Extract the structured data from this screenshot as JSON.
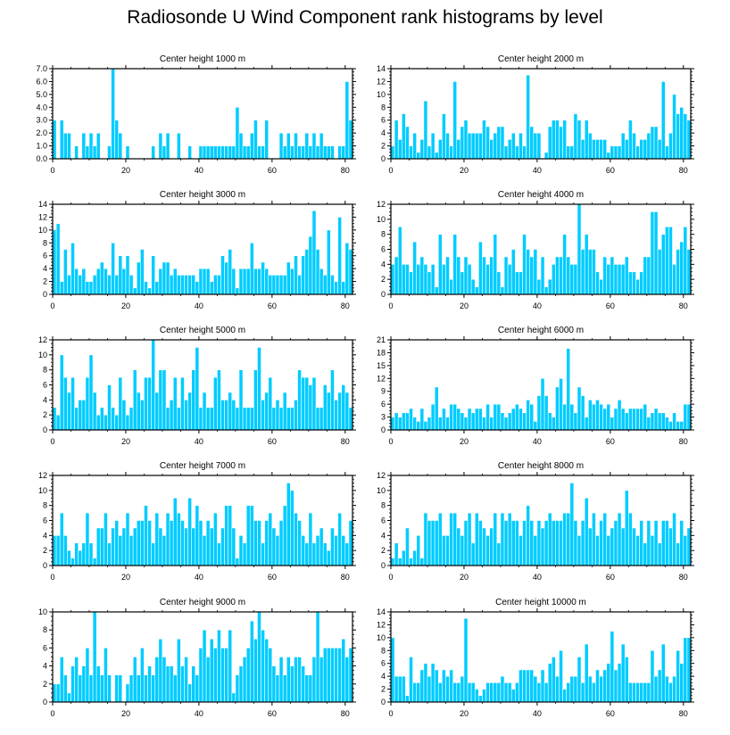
{
  "page": {
    "title": "Radiosonde U Wind Component rank histograms by level"
  },
  "style": {
    "bar_color": "#00ccff",
    "bar_edge": "#ffffff",
    "axis_color": "#000000"
  },
  "chart_data": [
    {
      "type": "bar",
      "title": "Center height 1000 m",
      "xlabel": "",
      "ylabel": "",
      "xlim": [
        0,
        82
      ],
      "ylim": [
        0,
        7
      ],
      "xticks": [
        0,
        20,
        40,
        60,
        80
      ],
      "yticks": [
        0,
        1,
        2,
        3,
        4,
        5,
        6,
        7
      ],
      "ytick_labels": [
        "0.0",
        "1.0",
        "2.0",
        "3.0",
        "4.0",
        "5.0",
        "6.0",
        "7.0"
      ],
      "values": [
        3,
        0,
        3,
        2,
        2,
        0,
        1,
        0,
        2,
        1,
        2,
        1,
        2,
        0,
        0,
        1,
        7,
        3,
        2,
        0,
        1,
        0,
        0,
        0,
        0,
        0,
        0,
        1,
        0,
        2,
        1,
        2,
        0,
        0,
        2,
        0,
        0,
        1,
        0,
        0,
        1,
        1,
        1,
        1,
        1,
        1,
        1,
        1,
        1,
        1,
        4,
        2,
        1,
        1,
        2,
        3,
        1,
        1,
        3,
        0,
        0,
        0,
        2,
        1,
        2,
        1,
        2,
        1,
        1,
        2,
        1,
        2,
        1,
        2,
        1,
        1,
        1,
        0,
        1,
        1,
        6,
        3
      ]
    },
    {
      "type": "bar",
      "title": "Center height 2000 m",
      "xlabel": "",
      "ylabel": "",
      "xlim": [
        0,
        82
      ],
      "ylim": [
        0,
        14
      ],
      "xticks": [
        0,
        20,
        40,
        60,
        80
      ],
      "yticks": [
        0,
        2,
        4,
        6,
        8,
        10,
        12,
        14
      ],
      "ytick_labels": [
        "0",
        "2",
        "4",
        "6",
        "8",
        "10",
        "12",
        "14"
      ],
      "values": [
        2,
        6,
        3,
        7,
        5,
        2,
        4,
        1,
        3,
        9,
        2,
        4,
        1,
        3,
        7,
        4,
        2,
        12,
        3,
        5,
        6,
        4,
        4,
        4,
        4,
        6,
        5,
        3,
        4,
        5,
        5,
        2,
        3,
        4,
        2,
        4,
        2,
        13,
        5,
        4,
        4,
        0,
        1,
        5,
        6,
        6,
        5,
        6,
        2,
        2,
        7,
        6,
        3,
        6,
        4,
        3,
        3,
        3,
        3,
        1,
        2,
        2,
        2,
        4,
        3,
        6,
        4,
        2,
        3,
        3,
        4,
        5,
        5,
        3,
        12,
        2,
        4,
        10,
        7,
        8,
        7,
        6
      ]
    },
    {
      "type": "bar",
      "title": "Center height 3000 m",
      "xlabel": "",
      "ylabel": "",
      "xlim": [
        0,
        82
      ],
      "ylim": [
        0,
        14
      ],
      "xticks": [
        0,
        20,
        40,
        60,
        80
      ],
      "yticks": [
        0,
        2,
        4,
        6,
        8,
        10,
        12,
        14
      ],
      "ytick_labels": [
        "0",
        "2",
        "4",
        "6",
        "8",
        "10",
        "12",
        "14"
      ],
      "values": [
        10,
        11,
        2,
        7,
        3,
        8,
        4,
        3,
        4,
        2,
        2,
        3,
        4,
        5,
        4,
        3,
        8,
        3,
        6,
        4,
        6,
        3,
        1,
        5,
        7,
        2,
        1,
        6,
        2,
        4,
        5,
        5,
        3,
        4,
        3,
        3,
        3,
        3,
        3,
        2,
        4,
        4,
        4,
        2,
        3,
        3,
        6,
        5,
        7,
        4,
        1,
        4,
        4,
        4,
        8,
        4,
        4,
        5,
        4,
        3,
        3,
        3,
        3,
        3,
        5,
        4,
        6,
        3,
        6,
        7,
        9,
        13,
        7,
        4,
        3,
        10,
        3,
        2,
        12,
        2,
        8,
        7
      ]
    },
    {
      "type": "bar",
      "title": "Center height 4000 m",
      "xlabel": "",
      "ylabel": "",
      "xlim": [
        0,
        82
      ],
      "ylim": [
        0,
        12
      ],
      "xticks": [
        0,
        20,
        40,
        60,
        80
      ],
      "yticks": [
        0,
        2,
        4,
        6,
        8,
        10,
        12
      ],
      "ytick_labels": [
        "0",
        "2",
        "4",
        "6",
        "8",
        "10",
        "12"
      ],
      "values": [
        4,
        5,
        9,
        4,
        4,
        3,
        7,
        4,
        5,
        4,
        3,
        4,
        1,
        8,
        4,
        5,
        2,
        8,
        5,
        3,
        5,
        4,
        2,
        1,
        7,
        5,
        4,
        5,
        8,
        3,
        1,
        5,
        4,
        6,
        3,
        3,
        8,
        6,
        5,
        6,
        2,
        5,
        1,
        2,
        4,
        5,
        5,
        8,
        5,
        4,
        4,
        12,
        6,
        8,
        6,
        6,
        3,
        2,
        5,
        4,
        5,
        4,
        4,
        4,
        5,
        3,
        3,
        2,
        3,
        5,
        5,
        11,
        11,
        6,
        8,
        9,
        9,
        4,
        6,
        7,
        9,
        6
      ]
    },
    {
      "type": "bar",
      "title": "Center height 5000 m",
      "xlabel": "",
      "ylabel": "",
      "xlim": [
        0,
        82
      ],
      "ylim": [
        0,
        12
      ],
      "xticks": [
        0,
        20,
        40,
        60,
        80
      ],
      "yticks": [
        0,
        2,
        4,
        6,
        8,
        10,
        12
      ],
      "ytick_labels": [
        "0",
        "2",
        "4",
        "6",
        "8",
        "10",
        "12"
      ],
      "values": [
        3,
        2,
        10,
        7,
        5,
        7,
        3,
        4,
        4,
        7,
        10,
        5,
        2,
        3,
        2,
        6,
        3,
        2,
        7,
        4,
        2,
        3,
        8,
        5,
        4,
        7,
        7,
        12,
        5,
        8,
        8,
        3,
        4,
        7,
        3,
        7,
        4,
        5,
        8,
        11,
        3,
        5,
        3,
        3,
        7,
        8,
        4,
        4,
        5,
        4,
        3,
        8,
        3,
        3,
        3,
        8,
        11,
        4,
        5,
        7,
        3,
        4,
        3,
        5,
        3,
        3,
        4,
        8,
        7,
        7,
        6,
        7,
        3,
        3,
        6,
        5,
        8,
        4,
        5,
        6,
        5,
        3
      ]
    },
    {
      "type": "bar",
      "title": "Center height 6000 m",
      "xlabel": "",
      "ylabel": "",
      "xlim": [
        0,
        82
      ],
      "ylim": [
        0,
        21
      ],
      "xticks": [
        0,
        20,
        40,
        60,
        80
      ],
      "yticks": [
        0,
        3,
        6,
        9,
        12,
        15,
        18,
        21
      ],
      "ytick_labels": [
        "0",
        "3",
        "6",
        "9",
        "12",
        "15",
        "18",
        "21"
      ],
      "values": [
        3,
        4,
        3,
        4,
        4,
        5,
        3,
        2,
        5,
        2,
        3,
        6,
        10,
        3,
        5,
        3,
        6,
        6,
        5,
        4,
        3,
        5,
        4,
        5,
        5,
        3,
        6,
        3,
        6,
        6,
        4,
        3,
        4,
        5,
        6,
        5,
        4,
        7,
        6,
        2,
        8,
        12,
        8,
        4,
        3,
        10,
        12,
        6,
        19,
        6,
        4,
        10,
        8,
        3,
        7,
        6,
        7,
        6,
        5,
        6,
        3,
        5,
        7,
        5,
        4,
        5,
        5,
        5,
        5,
        6,
        3,
        4,
        5,
        4,
        4,
        3,
        2,
        4,
        2,
        2,
        6,
        6
      ]
    },
    {
      "type": "bar",
      "title": "Center height 7000 m",
      "xlabel": "",
      "ylabel": "",
      "xlim": [
        0,
        82
      ],
      "ylim": [
        0,
        12
      ],
      "xticks": [
        0,
        20,
        40,
        60,
        80
      ],
      "yticks": [
        0,
        2,
        4,
        6,
        8,
        10,
        12
      ],
      "ytick_labels": [
        "0",
        "2",
        "4",
        "6",
        "8",
        "10",
        "12"
      ],
      "values": [
        4,
        4,
        7,
        4,
        2,
        1,
        3,
        2,
        3,
        7,
        3,
        1,
        5,
        5,
        7,
        3,
        5,
        6,
        4,
        5,
        7,
        4,
        5,
        6,
        6,
        8,
        6,
        3,
        7,
        5,
        4,
        7,
        6,
        9,
        7,
        6,
        5,
        9,
        5,
        8,
        6,
        4,
        6,
        5,
        7,
        3,
        5,
        8,
        8,
        5,
        1,
        4,
        3,
        8,
        8,
        6,
        6,
        3,
        6,
        7,
        5,
        4,
        6,
        8,
        11,
        10,
        7,
        6,
        4,
        3,
        7,
        3,
        4,
        5,
        3,
        2,
        5,
        4,
        7,
        4,
        3,
        6
      ]
    },
    {
      "type": "bar",
      "title": "Center height 8000 m",
      "xlabel": "",
      "ylabel": "",
      "xlim": [
        0,
        82
      ],
      "ylim": [
        0,
        12
      ],
      "xticks": [
        0,
        20,
        40,
        60,
        80
      ],
      "yticks": [
        0,
        2,
        4,
        6,
        8,
        10,
        12
      ],
      "ytick_labels": [
        "0",
        "2",
        "4",
        "6",
        "8",
        "10",
        "12"
      ],
      "values": [
        1,
        3,
        1,
        2,
        5,
        1,
        2,
        4,
        1,
        7,
        6,
        6,
        6,
        7,
        4,
        4,
        7,
        7,
        5,
        4,
        6,
        7,
        3,
        7,
        6,
        5,
        4,
        5,
        7,
        3,
        7,
        6,
        7,
        6,
        6,
        4,
        6,
        8,
        6,
        4,
        6,
        5,
        6,
        7,
        6,
        6,
        6,
        7,
        7,
        11,
        6,
        4,
        6,
        9,
        5,
        7,
        4,
        6,
        7,
        4,
        5,
        6,
        7,
        5,
        10,
        7,
        5,
        4,
        6,
        3,
        6,
        4,
        6,
        3,
        6,
        6,
        5,
        7,
        3,
        6,
        4,
        5
      ]
    },
    {
      "type": "bar",
      "title": "Center height 9000 m",
      "xlabel": "",
      "ylabel": "",
      "xlim": [
        0,
        82
      ],
      "ylim": [
        0,
        10
      ],
      "xticks": [
        0,
        20,
        40,
        60,
        80
      ],
      "yticks": [
        0,
        2,
        4,
        6,
        8,
        10
      ],
      "ytick_labels": [
        "0",
        "2",
        "4",
        "6",
        "8",
        "10"
      ],
      "values": [
        2,
        2,
        5,
        3,
        1,
        4,
        5,
        3,
        4,
        6,
        3,
        10,
        4,
        3,
        6,
        3,
        0,
        3,
        3,
        0,
        2,
        3,
        5,
        3,
        6,
        3,
        4,
        3,
        5,
        7,
        5,
        4,
        4,
        3,
        7,
        4,
        5,
        2,
        4,
        3,
        6,
        8,
        5,
        7,
        6,
        8,
        6,
        6,
        8,
        1,
        3,
        4,
        5,
        6,
        9,
        7,
        10,
        8,
        7,
        6,
        4,
        3,
        5,
        3,
        5,
        4,
        5,
        5,
        4,
        3,
        3,
        5,
        10,
        5,
        6,
        6,
        6,
        6,
        6,
        7,
        5,
        6
      ]
    },
    {
      "type": "bar",
      "title": "Center height 10000 m",
      "xlabel": "",
      "ylabel": "",
      "xlim": [
        0,
        82
      ],
      "ylim": [
        0,
        14
      ],
      "xticks": [
        0,
        20,
        40,
        60,
        80
      ],
      "yticks": [
        0,
        2,
        4,
        6,
        8,
        10,
        12,
        14
      ],
      "ytick_labels": [
        "0",
        "2",
        "4",
        "6",
        "8",
        "10",
        "12",
        "14"
      ],
      "values": [
        10,
        4,
        4,
        4,
        1,
        7,
        3,
        3,
        5,
        6,
        4,
        6,
        5,
        3,
        5,
        4,
        5,
        3,
        3,
        4,
        13,
        3,
        3,
        2,
        1,
        2,
        3,
        3,
        3,
        3,
        4,
        3,
        3,
        2,
        3,
        5,
        5,
        5,
        5,
        4,
        3,
        5,
        3,
        6,
        7,
        4,
        8,
        2,
        3,
        4,
        4,
        7,
        3,
        9,
        4,
        3,
        5,
        4,
        5,
        6,
        11,
        5,
        6,
        9,
        7,
        3,
        3,
        3,
        3,
        3,
        3,
        8,
        4,
        5,
        9,
        4,
        3,
        4,
        8,
        6,
        10,
        10
      ]
    }
  ]
}
